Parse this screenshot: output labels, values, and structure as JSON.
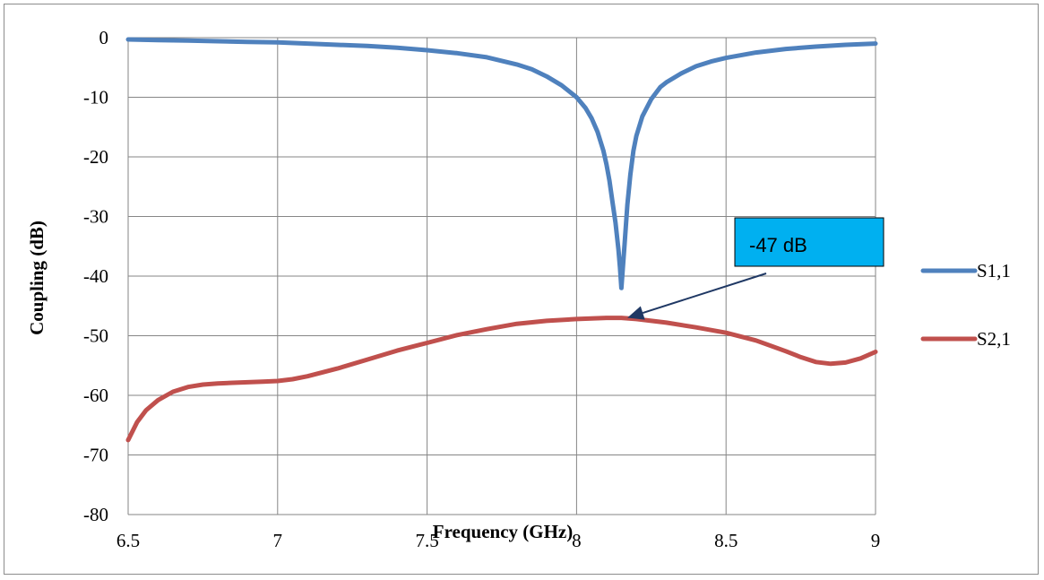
{
  "chart_data": {
    "type": "line",
    "title": "",
    "xlabel": "Frequency (GHz)",
    "ylabel": "Coupling (dB)",
    "xlim": [
      6.5,
      9
    ],
    "ylim": [
      -80,
      0
    ],
    "xticks": [
      6.5,
      7,
      7.5,
      8,
      8.5,
      9
    ],
    "xtick_labels": [
      "6.5",
      "7",
      "7.5",
      "8",
      "8.5",
      "9"
    ],
    "yticks": [
      0,
      -10,
      -20,
      -30,
      -40,
      -50,
      -60,
      -70,
      -80
    ],
    "ytick_labels": [
      "0",
      "-10",
      "-20",
      "-30",
      "-40",
      "-50",
      "-60",
      "-70",
      "-80"
    ],
    "grid": true,
    "legend_position": "right",
    "series": [
      {
        "name": "S1,1",
        "color": "#4f81bd",
        "x": [
          6.5,
          6.6,
          6.7,
          6.8,
          6.9,
          7.0,
          7.1,
          7.2,
          7.3,
          7.4,
          7.5,
          7.6,
          7.7,
          7.8,
          7.85,
          7.9,
          7.95,
          8.0,
          8.03,
          8.05,
          8.07,
          8.09,
          8.1,
          8.11,
          8.12,
          8.13,
          8.14,
          8.145,
          8.15,
          8.155,
          8.16,
          8.17,
          8.18,
          8.19,
          8.2,
          8.22,
          8.25,
          8.28,
          8.3,
          8.35,
          8.4,
          8.45,
          8.5,
          8.6,
          8.7,
          8.8,
          8.9,
          9.0
        ],
        "values": [
          -0.3,
          -0.4,
          -0.5,
          -0.6,
          -0.7,
          -0.8,
          -1.0,
          -1.2,
          -1.4,
          -1.7,
          -2.1,
          -2.6,
          -3.3,
          -4.5,
          -5.3,
          -6.5,
          -8.0,
          -10.0,
          -11.8,
          -13.5,
          -15.8,
          -19.0,
          -21.3,
          -24.0,
          -27.5,
          -31.0,
          -35.5,
          -38.5,
          -42.0,
          -38.5,
          -35.0,
          -28.0,
          -23.0,
          -19.0,
          -16.5,
          -13.2,
          -10.3,
          -8.3,
          -7.5,
          -6.0,
          -4.8,
          -4.0,
          -3.4,
          -2.5,
          -1.9,
          -1.5,
          -1.2,
          -1.0
        ]
      },
      {
        "name": "S2,1",
        "color": "#c0504d",
        "x": [
          6.5,
          6.53,
          6.56,
          6.6,
          6.65,
          6.7,
          6.75,
          6.8,
          6.85,
          6.9,
          6.95,
          7.0,
          7.05,
          7.1,
          7.2,
          7.3,
          7.4,
          7.5,
          7.6,
          7.7,
          7.8,
          7.9,
          8.0,
          8.1,
          8.15,
          8.2,
          8.3,
          8.4,
          8.5,
          8.6,
          8.7,
          8.75,
          8.8,
          8.85,
          8.9,
          8.95,
          9.0
        ],
        "values": [
          -67.5,
          -64.5,
          -62.5,
          -60.8,
          -59.4,
          -58.6,
          -58.2,
          -58.0,
          -57.9,
          -57.8,
          -57.7,
          -57.6,
          -57.3,
          -56.8,
          -55.5,
          -54.0,
          -52.5,
          -51.2,
          -49.9,
          -48.9,
          -48.0,
          -47.5,
          -47.2,
          -47.0,
          -47.0,
          -47.2,
          -47.8,
          -48.6,
          -49.5,
          -50.8,
          -52.6,
          -53.6,
          -54.4,
          -54.7,
          -54.5,
          -53.8,
          -52.7
        ]
      }
    ],
    "annotation": {
      "text": "-47 dB",
      "box_color": "#00b0f0",
      "arrow_target": {
        "x": 8.17,
        "y": -47
      }
    }
  }
}
